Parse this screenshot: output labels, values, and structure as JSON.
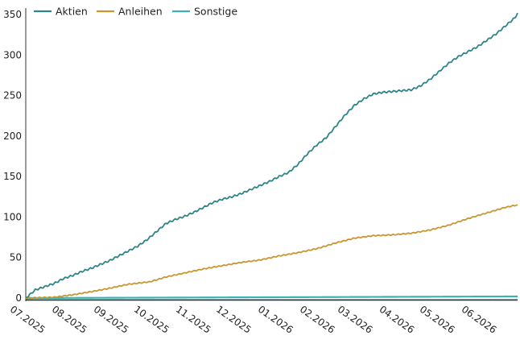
{
  "chart_data": {
    "type": "line",
    "title": "",
    "xlabel": "",
    "ylabel": "",
    "x_ticks": [
      "07.2025",
      "08.2025",
      "09.2025",
      "10.2025",
      "11.2025",
      "12.2025",
      "01.2026",
      "02.2026",
      "03.2026",
      "04.2026",
      "05.2026",
      "06.2026"
    ],
    "y_ticks": [
      0,
      50,
      100,
      150,
      200,
      250,
      300,
      350
    ],
    "ylim": [
      -2,
      358
    ],
    "xlim": [
      "2025-07-01",
      "2026-07-01"
    ],
    "grid": false,
    "legend_position": "top-left",
    "series": [
      {
        "name": "Aktien",
        "color": "#2e8589",
        "points": [
          [
            "2025-07-01",
            0
          ],
          [
            "2025-07-08",
            10
          ],
          [
            "2025-07-15",
            14
          ],
          [
            "2025-07-22",
            18
          ],
          [
            "2025-07-29",
            24
          ],
          [
            "2025-08-05",
            28
          ],
          [
            "2025-08-12",
            33
          ],
          [
            "2025-08-19",
            37
          ],
          [
            "2025-08-26",
            42
          ],
          [
            "2025-09-01",
            46
          ],
          [
            "2025-09-08",
            52
          ],
          [
            "2025-09-15",
            58
          ],
          [
            "2025-09-22",
            64
          ],
          [
            "2025-09-29",
            72
          ],
          [
            "2025-10-06",
            82
          ],
          [
            "2025-10-13",
            92
          ],
          [
            "2025-10-20",
            97
          ],
          [
            "2025-10-27",
            101
          ],
          [
            "2025-11-03",
            106
          ],
          [
            "2025-11-10",
            112
          ],
          [
            "2025-11-17",
            118
          ],
          [
            "2025-11-24",
            122
          ],
          [
            "2025-12-01",
            125
          ],
          [
            "2025-12-08",
            129
          ],
          [
            "2025-12-15",
            134
          ],
          [
            "2025-12-22",
            139
          ],
          [
            "2025-12-29",
            144
          ],
          [
            "2026-01-05",
            150
          ],
          [
            "2026-01-12",
            155
          ],
          [
            "2026-01-19",
            165
          ],
          [
            "2026-01-26",
            178
          ],
          [
            "2026-02-02",
            189
          ],
          [
            "2026-02-09",
            198
          ],
          [
            "2026-02-16",
            212
          ],
          [
            "2026-02-23",
            226
          ],
          [
            "2026-03-02",
            238
          ],
          [
            "2026-03-09",
            246
          ],
          [
            "2026-03-16",
            252
          ],
          [
            "2026-03-23",
            254
          ],
          [
            "2026-03-30",
            255
          ],
          [
            "2026-04-06",
            256
          ],
          [
            "2026-04-13",
            257
          ],
          [
            "2026-04-20",
            262
          ],
          [
            "2026-04-27",
            270
          ],
          [
            "2026-05-04",
            280
          ],
          [
            "2026-05-11",
            290
          ],
          [
            "2026-05-18",
            298
          ],
          [
            "2026-05-25",
            304
          ],
          [
            "2026-06-01",
            310
          ],
          [
            "2026-06-08",
            318
          ],
          [
            "2026-06-15",
            326
          ],
          [
            "2026-06-22",
            336
          ],
          [
            "2026-06-29",
            346
          ],
          [
            "2026-07-01",
            352
          ]
        ]
      },
      {
        "name": "Anleihen",
        "color": "#c9962f",
        "points": [
          [
            "2025-07-01",
            0
          ],
          [
            "2025-07-22",
            1
          ],
          [
            "2025-08-05",
            4
          ],
          [
            "2025-08-19",
            8
          ],
          [
            "2025-09-01",
            12
          ],
          [
            "2025-09-15",
            17
          ],
          [
            "2025-10-01",
            20
          ],
          [
            "2025-10-13",
            26
          ],
          [
            "2025-10-27",
            31
          ],
          [
            "2025-11-10",
            36
          ],
          [
            "2025-11-24",
            40
          ],
          [
            "2025-12-08",
            44
          ],
          [
            "2025-12-22",
            47
          ],
          [
            "2026-01-05",
            52
          ],
          [
            "2026-01-19",
            56
          ],
          [
            "2026-02-02",
            61
          ],
          [
            "2026-02-16",
            68
          ],
          [
            "2026-03-02",
            74
          ],
          [
            "2026-03-16",
            77
          ],
          [
            "2026-03-30",
            78
          ],
          [
            "2026-04-13",
            80
          ],
          [
            "2026-04-27",
            84
          ],
          [
            "2026-05-11",
            90
          ],
          [
            "2026-05-25",
            98
          ],
          [
            "2026-06-08",
            105
          ],
          [
            "2026-06-22",
            112
          ],
          [
            "2026-07-01",
            115
          ]
        ]
      },
      {
        "name": "Sonstige",
        "color": "#3bb3b4",
        "points": [
          [
            "2025-07-01",
            0
          ],
          [
            "2025-10-01",
            0.5
          ],
          [
            "2026-01-01",
            1
          ],
          [
            "2026-04-01",
            1.5
          ],
          [
            "2026-07-01",
            2
          ]
        ]
      }
    ]
  }
}
